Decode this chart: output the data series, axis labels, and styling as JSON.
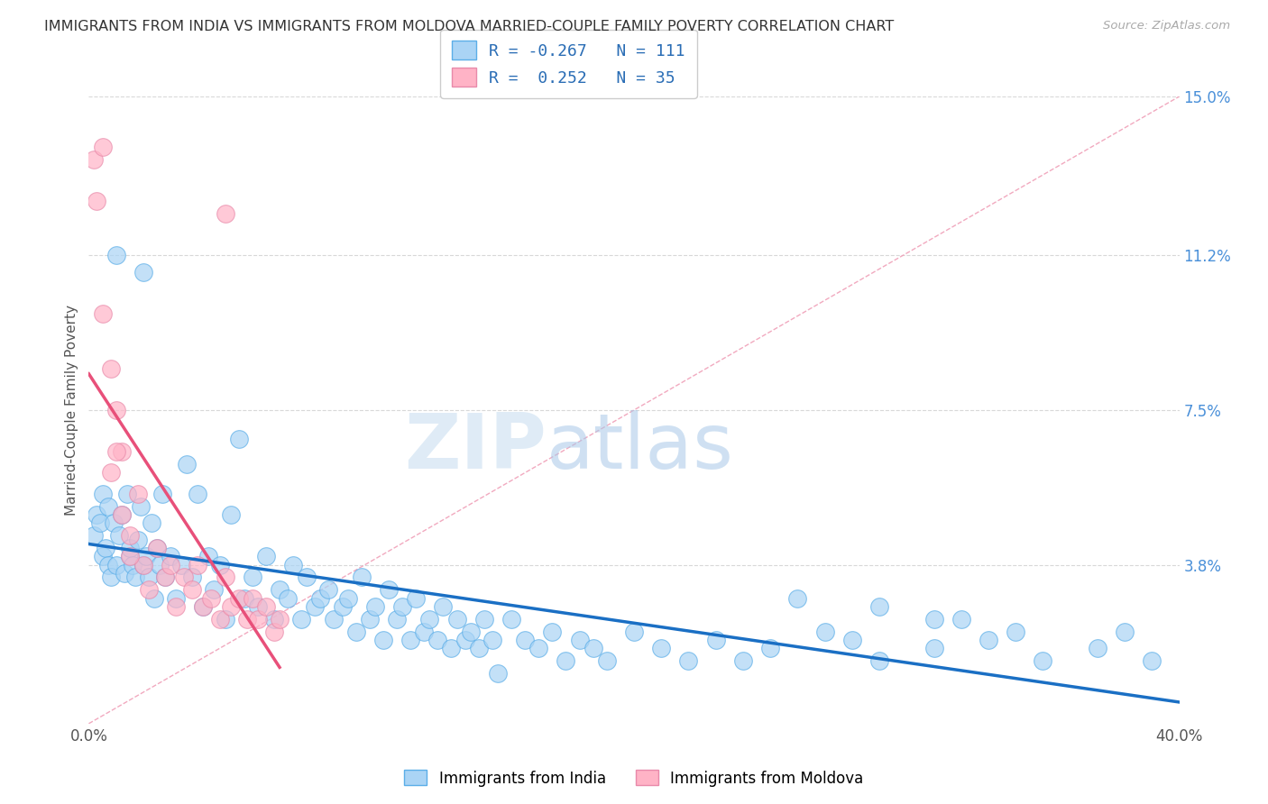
{
  "title": "IMMIGRANTS FROM INDIA VS IMMIGRANTS FROM MOLDOVA MARRIED-COUPLE FAMILY POVERTY CORRELATION CHART",
  "source": "Source: ZipAtlas.com",
  "ylabel": "Married-Couple Family Poverty",
  "xlim": [
    0.0,
    0.4
  ],
  "ylim": [
    0.0,
    0.15
  ],
  "xticks": [
    0.0,
    0.4
  ],
  "xticklabels": [
    "0.0%",
    "40.0%"
  ],
  "ytick_positions": [
    0.038,
    0.075,
    0.112,
    0.15
  ],
  "ytick_labels": [
    "3.8%",
    "7.5%",
    "11.2%",
    "15.0%"
  ],
  "india_R": -0.267,
  "india_N": 111,
  "moldova_R": 0.252,
  "moldova_N": 35,
  "india_color": "#aad4f5",
  "india_edge_color": "#5baee8",
  "india_line_color": "#1a6fc4",
  "moldova_color": "#ffb3c6",
  "moldova_edge_color": "#e88aaa",
  "moldova_line_color": "#e8507a",
  "diagonal_line_color": "#f0a0b8",
  "watermark_zip": "ZIP",
  "watermark_atlas": "atlas",
  "background_color": "#ffffff",
  "grid_color": "#d8d8d8",
  "right_label_color": "#4a90d9",
  "title_color": "#333333",
  "title_fontsize": 11.5,
  "seed": 42,
  "india_x": [
    0.002,
    0.003,
    0.004,
    0.005,
    0.005,
    0.006,
    0.007,
    0.007,
    0.008,
    0.009,
    0.01,
    0.01,
    0.011,
    0.012,
    0.013,
    0.014,
    0.015,
    0.015,
    0.016,
    0.017,
    0.018,
    0.019,
    0.02,
    0.02,
    0.021,
    0.022,
    0.023,
    0.024,
    0.025,
    0.026,
    0.027,
    0.028,
    0.03,
    0.032,
    0.034,
    0.036,
    0.038,
    0.04,
    0.042,
    0.044,
    0.046,
    0.048,
    0.05,
    0.052,
    0.055,
    0.057,
    0.06,
    0.062,
    0.065,
    0.068,
    0.07,
    0.073,
    0.075,
    0.078,
    0.08,
    0.083,
    0.085,
    0.088,
    0.09,
    0.093,
    0.095,
    0.098,
    0.1,
    0.103,
    0.105,
    0.108,
    0.11,
    0.113,
    0.115,
    0.118,
    0.12,
    0.123,
    0.125,
    0.128,
    0.13,
    0.133,
    0.135,
    0.138,
    0.14,
    0.143,
    0.145,
    0.148,
    0.15,
    0.155,
    0.16,
    0.165,
    0.17,
    0.175,
    0.18,
    0.185,
    0.19,
    0.2,
    0.21,
    0.22,
    0.23,
    0.24,
    0.25,
    0.27,
    0.29,
    0.31,
    0.33,
    0.35,
    0.37,
    0.38,
    0.39,
    0.29,
    0.31,
    0.26,
    0.28,
    0.32,
    0.34
  ],
  "india_y": [
    0.045,
    0.05,
    0.048,
    0.055,
    0.04,
    0.042,
    0.038,
    0.052,
    0.035,
    0.048,
    0.112,
    0.038,
    0.045,
    0.05,
    0.036,
    0.055,
    0.04,
    0.042,
    0.038,
    0.035,
    0.044,
    0.052,
    0.108,
    0.038,
    0.04,
    0.035,
    0.048,
    0.03,
    0.042,
    0.038,
    0.055,
    0.035,
    0.04,
    0.03,
    0.038,
    0.062,
    0.035,
    0.055,
    0.028,
    0.04,
    0.032,
    0.038,
    0.025,
    0.05,
    0.068,
    0.03,
    0.035,
    0.028,
    0.04,
    0.025,
    0.032,
    0.03,
    0.038,
    0.025,
    0.035,
    0.028,
    0.03,
    0.032,
    0.025,
    0.028,
    0.03,
    0.022,
    0.035,
    0.025,
    0.028,
    0.02,
    0.032,
    0.025,
    0.028,
    0.02,
    0.03,
    0.022,
    0.025,
    0.02,
    0.028,
    0.018,
    0.025,
    0.02,
    0.022,
    0.018,
    0.025,
    0.02,
    0.012,
    0.025,
    0.02,
    0.018,
    0.022,
    0.015,
    0.02,
    0.018,
    0.015,
    0.022,
    0.018,
    0.015,
    0.02,
    0.015,
    0.018,
    0.022,
    0.015,
    0.018,
    0.02,
    0.015,
    0.018,
    0.022,
    0.015,
    0.028,
    0.025,
    0.03,
    0.02,
    0.025,
    0.022
  ],
  "moldova_x": [
    0.002,
    0.003,
    0.005,
    0.005,
    0.008,
    0.01,
    0.012,
    0.015,
    0.018,
    0.02,
    0.022,
    0.025,
    0.028,
    0.03,
    0.032,
    0.035,
    0.038,
    0.04,
    0.042,
    0.045,
    0.048,
    0.05,
    0.052,
    0.055,
    0.058,
    0.06,
    0.062,
    0.065,
    0.068,
    0.07,
    0.05,
    0.008,
    0.01,
    0.012,
    0.015
  ],
  "moldova_y": [
    0.135,
    0.125,
    0.138,
    0.098,
    0.085,
    0.075,
    0.065,
    0.045,
    0.055,
    0.038,
    0.032,
    0.042,
    0.035,
    0.038,
    0.028,
    0.035,
    0.032,
    0.038,
    0.028,
    0.03,
    0.025,
    0.035,
    0.028,
    0.03,
    0.025,
    0.03,
    0.025,
    0.028,
    0.022,
    0.025,
    0.122,
    0.06,
    0.065,
    0.05,
    0.04
  ]
}
